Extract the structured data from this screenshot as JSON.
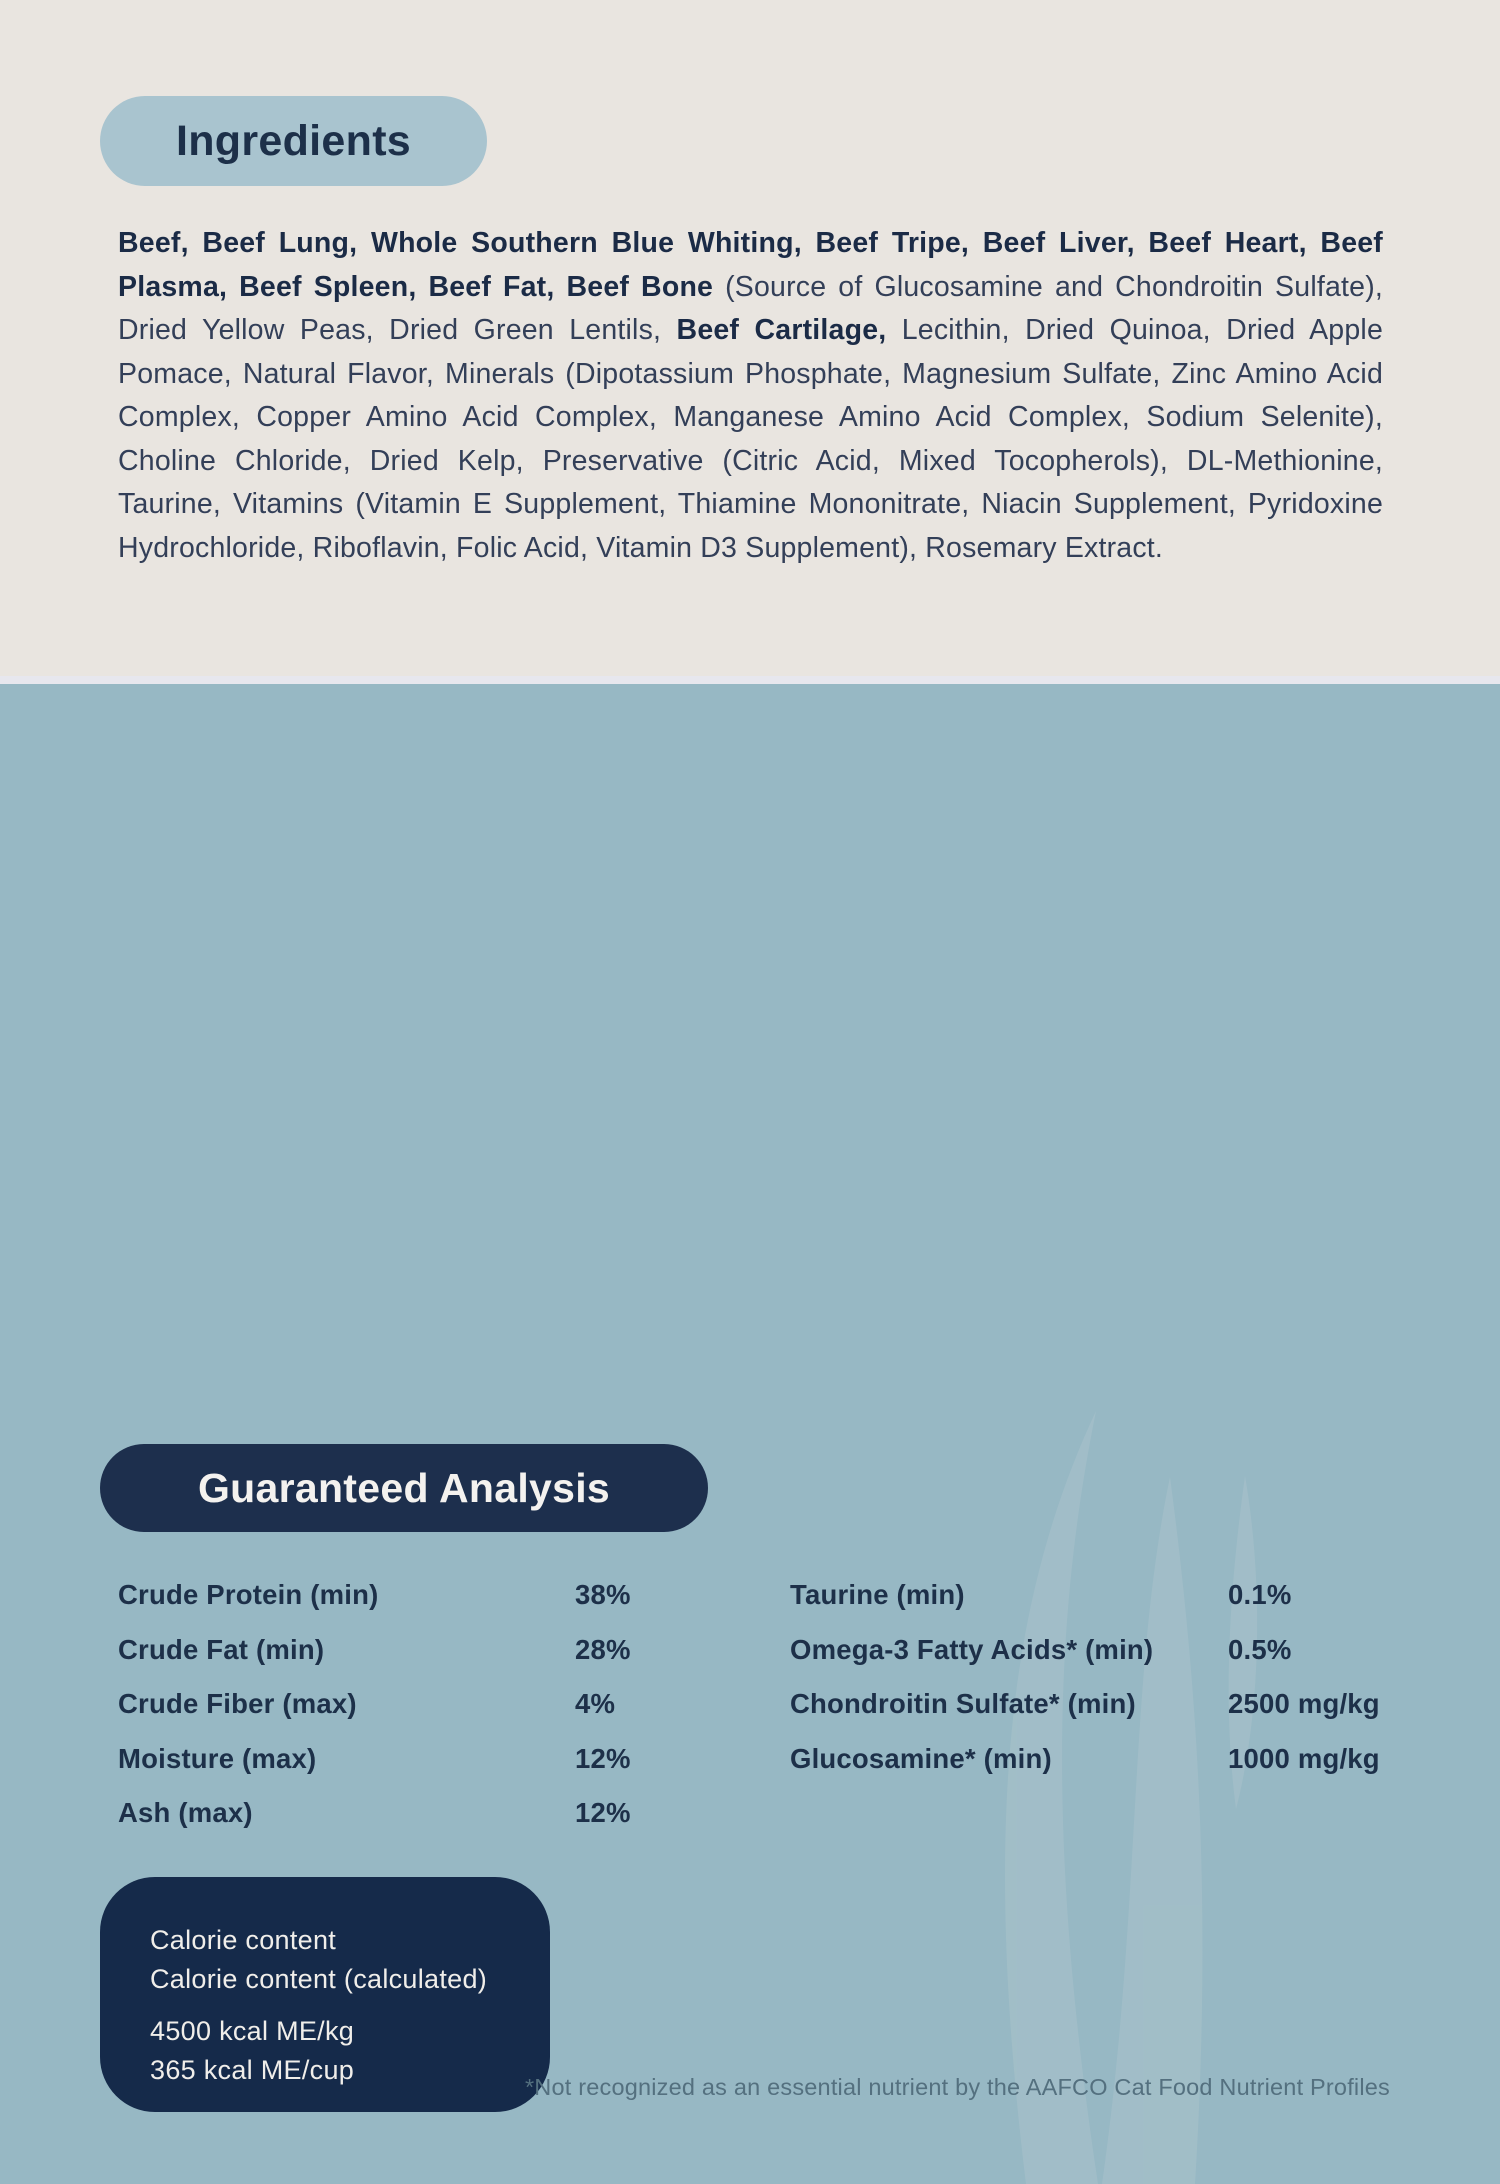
{
  "ingredients": {
    "heading": "Ingredients",
    "segments": [
      {
        "text": "Beef, Beef Lung, Whole Southern Blue Whiting, Beef Tripe, Beef Liver, Beef Heart, Beef Plasma, Beef Spleen, Beef Fat, Beef Bone",
        "bold": true
      },
      {
        "text": " (Source of Glucosamine and Chondroitin Sulfate), Dried Yellow Peas, Dried Green Lentils, ",
        "bold": false
      },
      {
        "text": "Beef Cartilage,",
        "bold": true
      },
      {
        "text": " Lecithin, Dried Quinoa, Dried Apple Pomace, Natural Flavor, Minerals (Dipotassium Phosphate, Magnesium Sulfate, Zinc Amino Acid Complex, Copper Amino Acid Complex, Manganese Amino Acid Complex, Sodium Selenite), Choline Chloride, Dried Kelp, Preservative (Citric Acid, Mixed Tocopherols), DL-Methionine, Taurine, Vitamins (Vitamin E Supplement, Thiamine Mononitrate, Niacin Supplement, Pyridoxine Hydrochloride, Riboflavin, Folic Acid, Vitamin D3 Supplement), Rosemary Extract.",
        "bold": false
      }
    ]
  },
  "guaranteed_analysis": {
    "heading": "Guaranteed Analysis",
    "left_rows": [
      {
        "label": "Crude Protein (min)",
        "value": "38%"
      },
      {
        "label": "Crude Fat (min)",
        "value": "28%"
      },
      {
        "label": "Crude Fiber (max)",
        "value": "4%"
      },
      {
        "label": "Moisture (max)",
        "value": "12%"
      },
      {
        "label": "Ash (max)",
        "value": "12%"
      }
    ],
    "right_rows": [
      {
        "label": "Taurine (min)",
        "value": "0.1%"
      },
      {
        "label": "Omega-3 Fatty Acids* (min)",
        "value": "0.5%"
      },
      {
        "label": "Chondroitin Sulfate* (min)",
        "value": "2500 mg/kg"
      },
      {
        "label": "Glucosamine* (min)",
        "value": "1000 mg/kg"
      }
    ],
    "footnote": "*Not recognized as an essential nutrient by the AAFCO Cat Food Nutrient Profiles"
  },
  "calorie_content": {
    "title_line1": "Calorie content",
    "title_line2": "Calorie content (calculated)",
    "value_line1": "4500 kcal ME/kg",
    "value_line2": "365 kcal ME/cup"
  },
  "colors": {
    "cream_background": "#e9e5e0",
    "divider_band": "#e7e7ee",
    "blue_background": "#97b8c4",
    "light_pill": "#a9c4cf",
    "navy_pill": "#1d2f4d",
    "navy_box": "#152a4a",
    "heading_navy_text": "#1d3049",
    "body_text": "#333f58",
    "light_text": "#f4f2ef",
    "footnote_text": "#54707f",
    "watermark": "#aec5cd"
  }
}
